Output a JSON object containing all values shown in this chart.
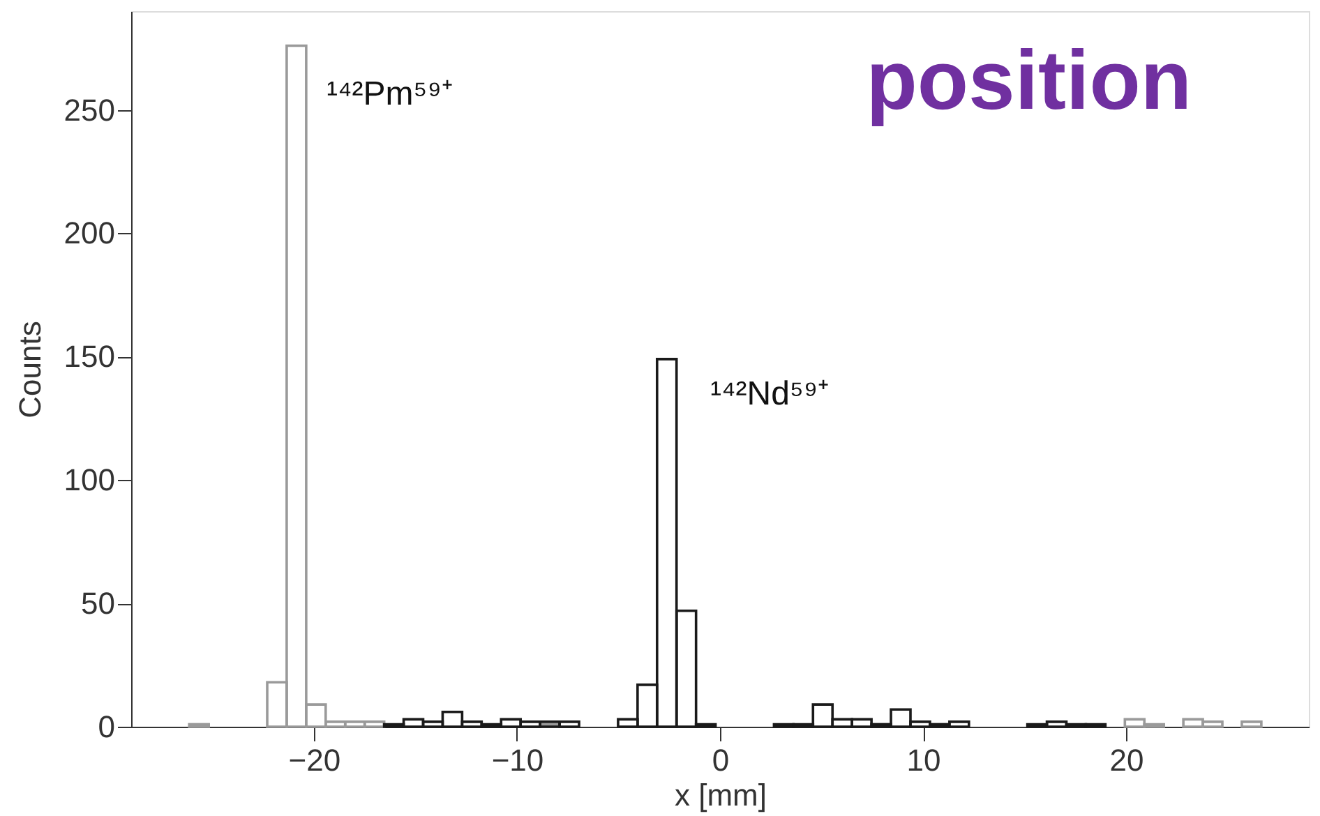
{
  "chart_data": {
    "type": "histogram",
    "xlabel": "x [mm]",
    "ylabel": "Counts",
    "bins": [
      -26.14,
      -25.18,
      -24.22,
      -23.26,
      -22.3,
      -21.34,
      -20.38,
      -19.42,
      -18.46,
      -17.5,
      -16.54,
      -15.58,
      -14.62,
      -13.66,
      -12.7,
      -11.74,
      -10.78,
      -9.82,
      -8.86,
      -7.9,
      -6.94,
      -5.98,
      -5.02,
      -4.06,
      -3.1,
      -2.14,
      -1.18,
      -0.22,
      0.74,
      1.7,
      2.66,
      3.62,
      4.58,
      5.54,
      6.5,
      7.46,
      8.42,
      9.38,
      10.34,
      11.3,
      12.26,
      13.22,
      14.18,
      15.14,
      16.1,
      17.06,
      18.02,
      18.98,
      19.94,
      20.9,
      21.86,
      22.82,
      23.78,
      24.74,
      25.7,
      26.66
    ],
    "series": [
      {
        "color": "#9a9a9a",
        "values": [
          1,
          null,
          null,
          null,
          18,
          276,
          9,
          2,
          2,
          2,
          null,
          null,
          null,
          null,
          null,
          null,
          null,
          null,
          1,
          null,
          null,
          null,
          null,
          null,
          null,
          null,
          null,
          null,
          null,
          null,
          null,
          null,
          null,
          null,
          null,
          null,
          null,
          null,
          null,
          null,
          null,
          null,
          null,
          null,
          null,
          null,
          null,
          null,
          3,
          1,
          null,
          3,
          2,
          null,
          2
        ]
      },
      {
        "color": "#1a1a1a",
        "values": [
          null,
          null,
          null,
          null,
          null,
          null,
          null,
          null,
          null,
          null,
          1,
          3,
          2,
          6,
          2,
          1,
          3,
          2,
          2,
          2,
          null,
          null,
          3,
          17,
          149,
          47,
          1,
          null,
          null,
          null,
          1,
          1,
          9,
          3,
          3,
          1,
          7,
          2,
          1,
          2,
          null,
          null,
          null,
          1,
          2,
          1,
          1,
          null,
          null,
          null,
          null,
          null,
          null,
          null,
          null
        ]
      }
    ],
    "xlim": [
      -29,
      29
    ],
    "xticks": [
      -20,
      -10,
      0,
      10,
      20
    ],
    "ylim": [
      0,
      290
    ],
    "yticks": [
      0,
      50,
      100,
      150,
      200,
      250
    ],
    "grid": false,
    "annotations": [
      "¹⁴²Pm⁵⁹⁺",
      "¹⁴²Nd⁵⁹⁺",
      "position"
    ]
  }
}
